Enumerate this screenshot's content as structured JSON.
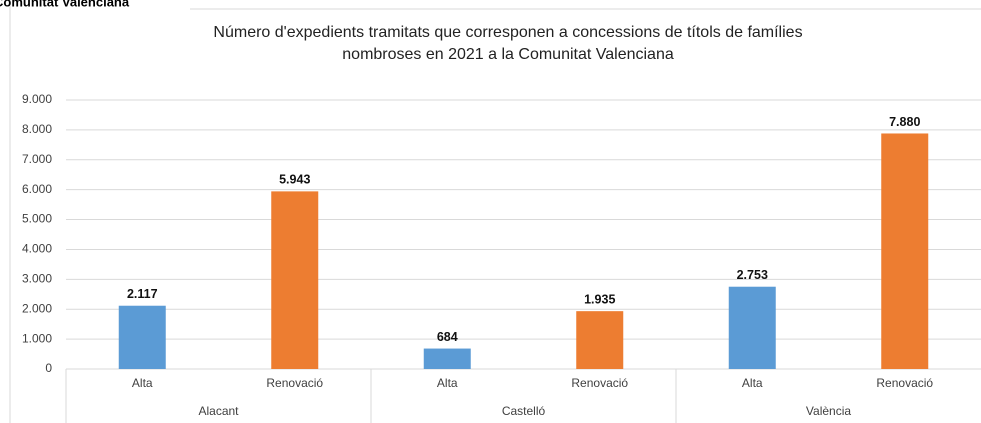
{
  "header": "Comunitat Valenciana",
  "chart_data": {
    "type": "bar",
    "title": [
      "Número d'expedients tramitats que corresponen a concessions de títols de famílies",
      "nombroses en 2021 a la Comunitat Valenciana"
    ],
    "groups": [
      "Alacant",
      "Castelló",
      "València"
    ],
    "categories": [
      "Alta",
      "Renovació",
      "Alta",
      "Renovació",
      "Alta",
      "Renovació"
    ],
    "values": [
      2117,
      5943,
      684,
      1935,
      2753,
      7880
    ],
    "value_labels": [
      "2.117",
      "5.943",
      "684",
      "1.935",
      "2.753",
      "7.880"
    ],
    "colors": [
      "#5b9bd5",
      "#ed7d31",
      "#5b9bd5",
      "#ed7d31",
      "#5b9bd5",
      "#ed7d31"
    ],
    "ylim": [
      0,
      9000
    ],
    "yticks": [
      0,
      {
        "value": 1000,
        "label": "1.000"
      },
      {
        "value": 2000,
        "label": "2.000"
      },
      {
        "value": 3000,
        "label": "3.000"
      },
      {
        "value": 4000,
        "label": "4.000"
      },
      {
        "value": 5000,
        "label": "5.000"
      },
      {
        "value": 6000,
        "label": "6.000"
      },
      {
        "value": 7000,
        "label": "7.000"
      },
      {
        "value": 8000,
        "label": "8.000"
      },
      {
        "value": 9000,
        "label": "9.000"
      }
    ],
    "grid": true
  }
}
